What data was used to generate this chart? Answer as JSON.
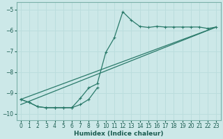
{
  "xlabel": "Humidex (Indice chaleur)",
  "bg_color": "#cce8e8",
  "grid_color": "#bbdddd",
  "line_color": "#2a7a6a",
  "xlim": [
    -0.5,
    23.5
  ],
  "ylim": [
    -10.3,
    -4.65
  ],
  "xticks": [
    0,
    1,
    2,
    3,
    4,
    5,
    6,
    7,
    8,
    9,
    10,
    11,
    12,
    13,
    14,
    15,
    16,
    17,
    18,
    19,
    20,
    21,
    22,
    23
  ],
  "yticks": [
    -10,
    -9,
    -8,
    -7,
    -6,
    -5
  ],
  "curve_jagged_x": [
    0,
    1,
    2,
    3,
    4,
    5,
    6,
    7,
    8,
    9,
    10,
    11,
    12,
    13,
    14,
    15,
    16,
    17,
    18,
    19,
    20,
    21,
    22,
    23
  ],
  "curve_jagged_y": [
    -9.3,
    -9.45,
    -9.65,
    -9.7,
    -9.7,
    -9.7,
    -9.7,
    -9.25,
    -8.75,
    -8.55,
    -7.05,
    -6.35,
    -5.1,
    -5.5,
    -5.8,
    -5.85,
    -5.8,
    -5.83,
    -5.83,
    -5.83,
    -5.83,
    -5.83,
    -5.9,
    -5.83
  ],
  "curve_smooth_x": [
    0,
    1,
    2,
    3,
    4,
    5,
    6,
    7,
    8,
    9
  ],
  "curve_smooth_y": [
    -9.3,
    -9.45,
    -9.65,
    -9.7,
    -9.7,
    -9.7,
    -9.7,
    -9.55,
    -9.3,
    -8.75
  ],
  "line1_x": [
    0,
    23
  ],
  "line1_y": [
    -9.55,
    -5.83
  ],
  "line2_x": [
    0,
    23
  ],
  "line2_y": [
    -9.3,
    -5.83
  ]
}
